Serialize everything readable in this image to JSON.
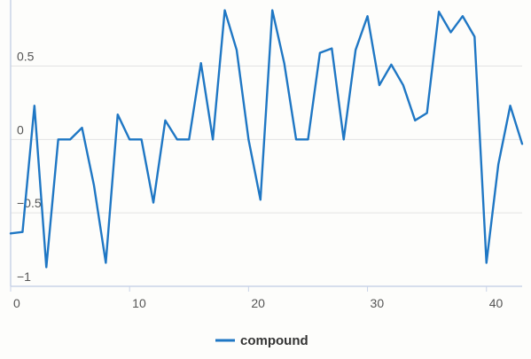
{
  "chart_data": {
    "type": "line",
    "title": "",
    "xlabel": "",
    "ylabel": "",
    "xlim": [
      0,
      43
    ],
    "ylim": [
      -1.0,
      0.95
    ],
    "x_ticks": [
      0,
      10,
      20,
      30,
      40
    ],
    "x_tick_labels": [
      "0",
      "10",
      "20",
      "30",
      "40"
    ],
    "y_ticks": [
      -1,
      -0.5,
      0,
      0.5
    ],
    "y_tick_labels": [
      "−1",
      "−0.5",
      "0",
      "0.5"
    ],
    "grid": {
      "horizontal": true,
      "vertical": false
    },
    "legend": "bottom-center",
    "series": [
      {
        "name": "compound",
        "color": "#1f77c4",
        "x": [
          0,
          1,
          2,
          3,
          4,
          5,
          6,
          7,
          8,
          9,
          10,
          11,
          12,
          13,
          14,
          15,
          16,
          17,
          18,
          19,
          20,
          21,
          22,
          23,
          24,
          25,
          26,
          27,
          28,
          29,
          30,
          31,
          32,
          33,
          34,
          35,
          36,
          37,
          38,
          39,
          40,
          41,
          42,
          43
        ],
        "y": [
          -0.64,
          -0.63,
          0.23,
          -0.87,
          0.0,
          0.0,
          0.08,
          -0.31,
          -0.84,
          0.17,
          0.0,
          0.0,
          -0.43,
          0.13,
          0.0,
          0.0,
          0.52,
          0.0,
          0.88,
          0.61,
          0.0,
          -0.41,
          0.88,
          0.52,
          0.0,
          0.0,
          0.59,
          0.62,
          0.0,
          0.61,
          0.84,
          0.37,
          0.51,
          0.37,
          0.13,
          0.18,
          0.87,
          0.73,
          0.84,
          0.7,
          -0.84,
          -0.17,
          0.23,
          -0.03
        ]
      }
    ]
  }
}
